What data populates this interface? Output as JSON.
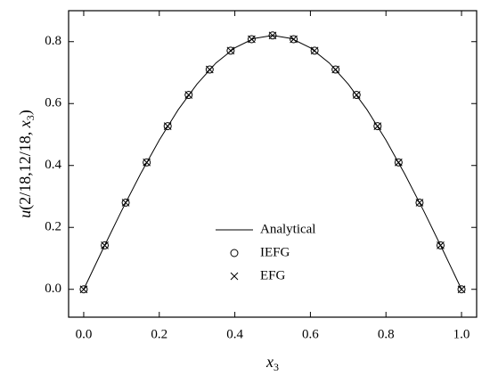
{
  "chart_data": {
    "type": "line",
    "xlabel": [
      "x",
      "3"
    ],
    "ylabel": [
      "u",
      "(2/18,12/18, ",
      "x",
      "3",
      ")"
    ],
    "xlim": [
      -0.04,
      1.04
    ],
    "ylim": [
      -0.09,
      0.9
    ],
    "xticks": [
      {
        "value": 0,
        "label": "0.0"
      },
      {
        "value": 0.2,
        "label": "0.2"
      },
      {
        "value": 0.4,
        "label": "0.4"
      },
      {
        "value": 0.6,
        "label": "0.6"
      },
      {
        "value": 0.8,
        "label": "0.8"
      },
      {
        "value": 1,
        "label": "1.0"
      }
    ],
    "yticks": [
      {
        "value": 0,
        "label": "0.0"
      },
      {
        "value": 0.2,
        "label": "0.2"
      },
      {
        "value": 0.4,
        "label": "0.4"
      },
      {
        "value": 0.6,
        "label": "0.6"
      },
      {
        "value": 0.8,
        "label": "0.8"
      }
    ],
    "legend": "center",
    "series": [
      {
        "name": "Analytical",
        "color": "#000000",
        "marker": "none",
        "x": [
          0,
          0.05,
          0.1,
          0.15,
          0.2,
          0.25,
          0.3,
          0.35,
          0.4,
          0.45,
          0.5,
          0.55,
          0.6,
          0.65,
          0.7,
          0.75,
          0.8,
          0.85,
          0.9,
          0.95,
          1
        ],
        "values": [
          0,
          0.128,
          0.253,
          0.372,
          0.482,
          0.58,
          0.663,
          0.731,
          0.78,
          0.81,
          0.82,
          0.81,
          0.78,
          0.731,
          0.663,
          0.58,
          0.482,
          0.372,
          0.253,
          0.128,
          0
        ]
      },
      {
        "name": "IEFG",
        "color": "#000000",
        "marker": "circle",
        "x": [
          0,
          0.0556,
          0.1111,
          0.1667,
          0.2222,
          0.2778,
          0.3333,
          0.3889,
          0.4444,
          0.5,
          0.5556,
          0.6111,
          0.6667,
          0.7222,
          0.7778,
          0.8333,
          0.8889,
          0.9444,
          1
        ],
        "values": [
          0,
          0.142,
          0.28,
          0.41,
          0.527,
          0.628,
          0.71,
          0.771,
          0.808,
          0.82,
          0.808,
          0.771,
          0.71,
          0.628,
          0.527,
          0.41,
          0.28,
          0.142,
          0
        ]
      },
      {
        "name": "EFG",
        "color": "#000000",
        "marker": "x",
        "x": [
          0,
          0.0556,
          0.1111,
          0.1667,
          0.2222,
          0.2778,
          0.3333,
          0.3889,
          0.4444,
          0.5,
          0.5556,
          0.6111,
          0.6667,
          0.7222,
          0.7778,
          0.8333,
          0.8889,
          0.9444,
          1
        ],
        "values": [
          0,
          0.142,
          0.28,
          0.41,
          0.527,
          0.628,
          0.71,
          0.771,
          0.808,
          0.82,
          0.808,
          0.771,
          0.71,
          0.628,
          0.527,
          0.41,
          0.28,
          0.142,
          0
        ]
      }
    ]
  }
}
